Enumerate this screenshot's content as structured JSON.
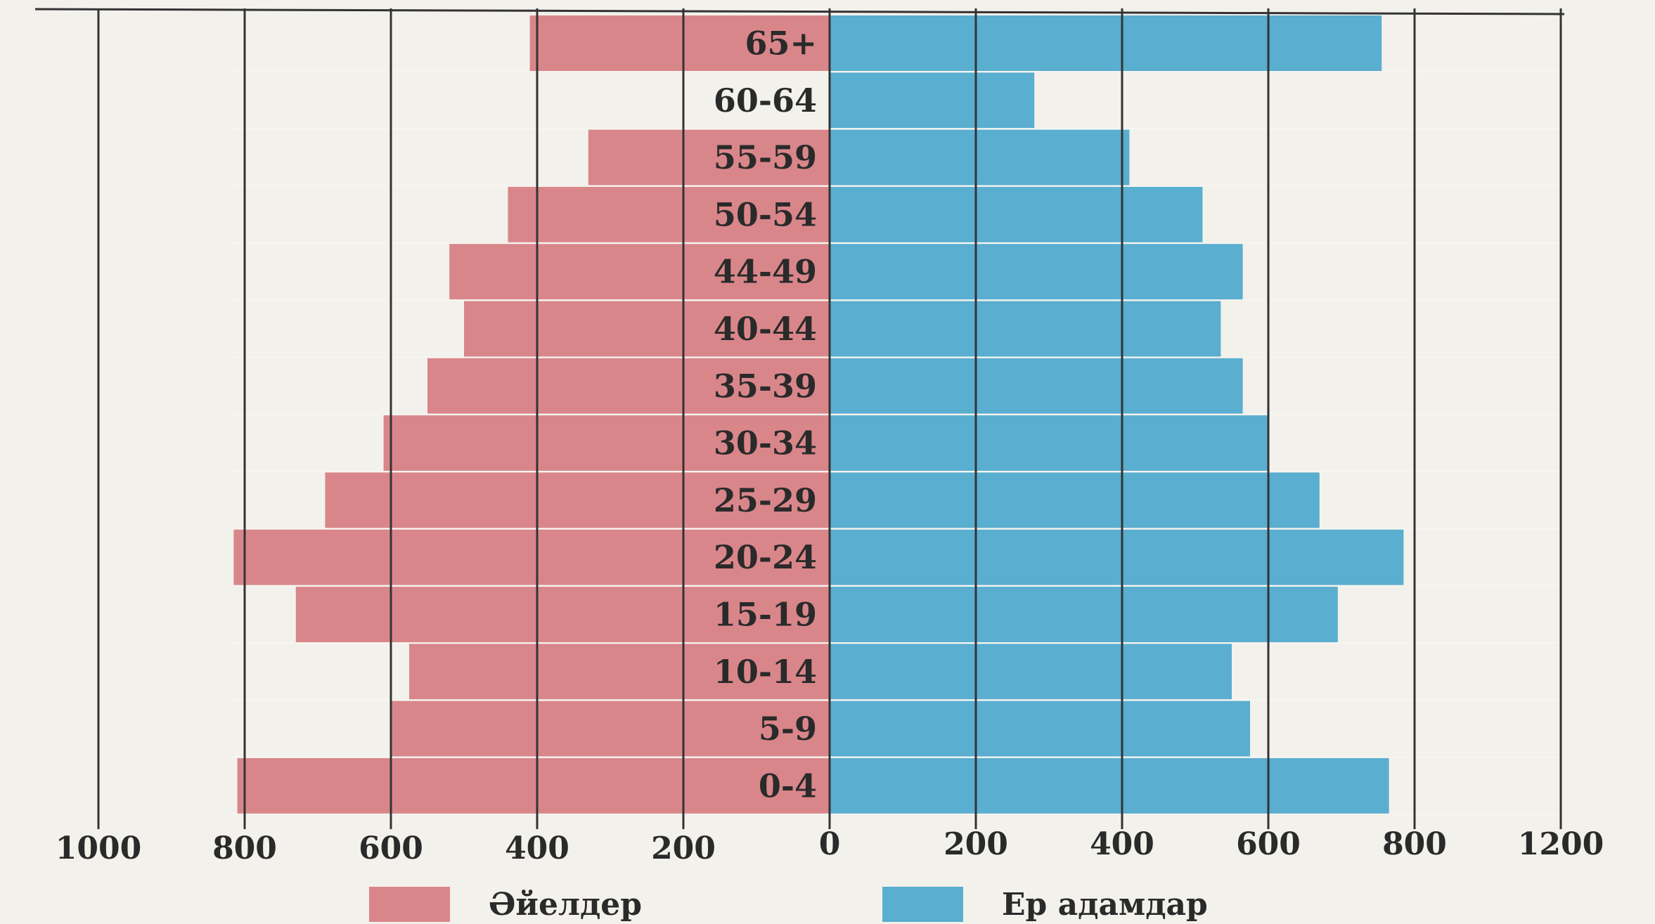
{
  "chart_data": {
    "type": "bar",
    "orientation": "horizontal",
    "layout": "population-pyramid",
    "categories": [
      "0-4",
      "5-9",
      "10-14",
      "15-19",
      "20-24",
      "25-29",
      "30-34",
      "35-39",
      "40-44",
      "44-49",
      "50-54",
      "55-59",
      "60-64",
      "65+"
    ],
    "series": [
      {
        "name": "Әйелдер",
        "side": "left",
        "color": "#d9868a",
        "values": [
          810,
          600,
          575,
          730,
          815,
          690,
          610,
          550,
          500,
          520,
          440,
          330,
          0,
          410
        ]
      },
      {
        "name": "Ер адамдар",
        "side": "right",
        "color": "#5aaed0",
        "values": [
          765,
          575,
          550,
          695,
          785,
          670,
          600,
          565,
          535,
          565,
          510,
          410,
          280,
          755
        ]
      }
    ],
    "x_ticks_left": [
      "1000",
      "800",
      "600",
      "400",
      "200"
    ],
    "x_ticks_right": [
      "0",
      "200",
      "400",
      "600",
      "800",
      "1200"
    ],
    "xlim_left": [
      0,
      1000
    ],
    "xlim_right": [
      0,
      1000
    ],
    "grid": "vertical",
    "legend": {
      "position": "bottom",
      "entries": [
        "Әйелдер",
        "Ер адамдар"
      ]
    }
  }
}
